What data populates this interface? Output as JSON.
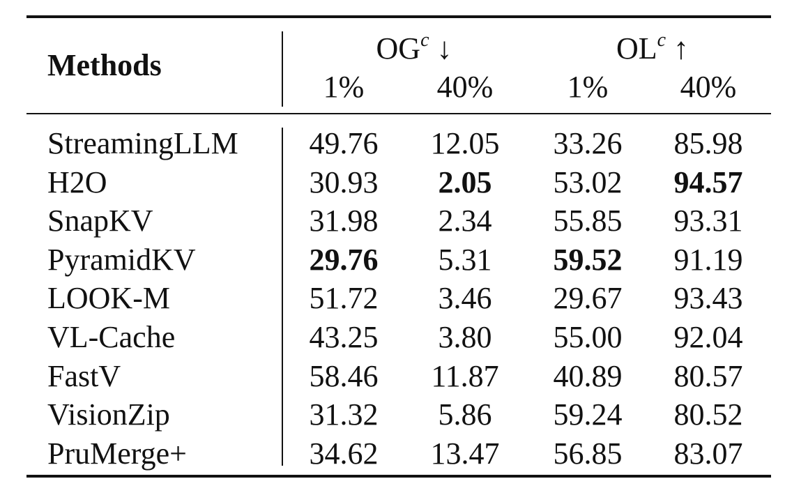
{
  "table": {
    "methods_header": "Methods",
    "groups": [
      {
        "metric": "OG",
        "superscript": "c",
        "arrow": "↓",
        "subcolumns": [
          "1%",
          "40%"
        ]
      },
      {
        "metric": "OL",
        "superscript": "c",
        "arrow": "↑",
        "subcolumns": [
          "1%",
          "40%"
        ]
      }
    ],
    "rows": [
      {
        "method": "StreamingLLM",
        "values": [
          "49.76",
          "12.05",
          "33.26",
          "85.98"
        ],
        "bold": [
          false,
          false,
          false,
          false
        ]
      },
      {
        "method": "H2O",
        "values": [
          "30.93",
          "2.05",
          "53.02",
          "94.57"
        ],
        "bold": [
          false,
          true,
          false,
          true
        ]
      },
      {
        "method": "SnapKV",
        "values": [
          "31.98",
          "2.34",
          "55.85",
          "93.31"
        ],
        "bold": [
          false,
          false,
          false,
          false
        ]
      },
      {
        "method": "PyramidKV",
        "values": [
          "29.76",
          "5.31",
          "59.52",
          "91.19"
        ],
        "bold": [
          true,
          false,
          true,
          false
        ]
      },
      {
        "method": "LOOK-M",
        "values": [
          "51.72",
          "3.46",
          "29.67",
          "93.43"
        ],
        "bold": [
          false,
          false,
          false,
          false
        ]
      },
      {
        "method": "VL-Cache",
        "values": [
          "43.25",
          "3.80",
          "55.00",
          "92.04"
        ],
        "bold": [
          false,
          false,
          false,
          false
        ]
      },
      {
        "method": "FastV",
        "values": [
          "58.46",
          "11.87",
          "40.89",
          "80.57"
        ],
        "bold": [
          false,
          false,
          false,
          false
        ]
      },
      {
        "method": "VisionZip",
        "values": [
          "31.32",
          "5.86",
          "59.24",
          "80.52"
        ],
        "bold": [
          false,
          false,
          false,
          false
        ]
      },
      {
        "method": "PruMerge+",
        "values": [
          "34.62",
          "13.47",
          "56.85",
          "83.07"
        ],
        "bold": [
          false,
          false,
          false,
          false
        ]
      }
    ]
  }
}
